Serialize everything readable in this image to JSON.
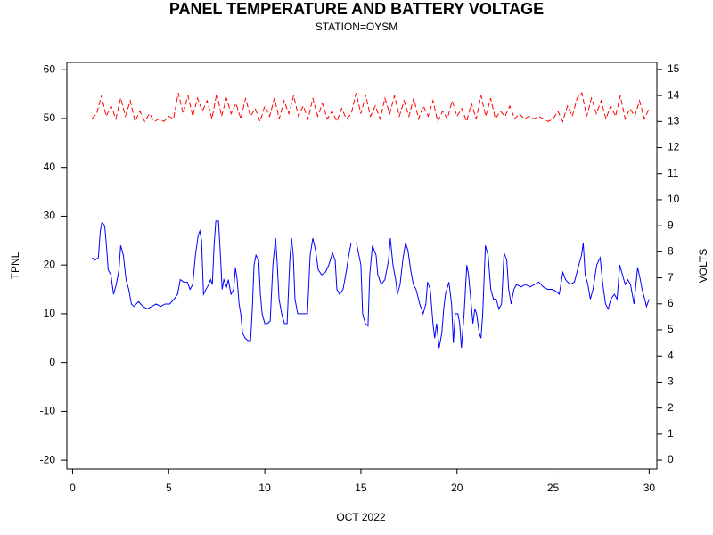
{
  "chart_data": {
    "type": "line",
    "title": "PANEL TEMPERATURE AND BATTERY VOLTAGE",
    "subtitle": "STATION=OYSM",
    "xlabel": "OCT 2022",
    "ylabel": "TPNL",
    "y2label": "VOLTS",
    "xlim": [
      -0.3,
      30.4
    ],
    "xticks": [
      0,
      5,
      10,
      15,
      20,
      25,
      30
    ],
    "ylim": [
      -21.8,
      61.5
    ],
    "yticks": [
      -20,
      -10,
      0,
      10,
      20,
      30,
      40,
      50,
      60
    ],
    "y2lim": [
      -0.34,
      15.27
    ],
    "y2ticks": [
      0,
      1,
      2,
      3,
      4,
      5,
      6,
      7,
      8,
      9,
      10,
      11,
      12,
      13,
      14,
      15
    ],
    "series": [
      {
        "color": "#0000ff",
        "axis": "y",
        "dash": false,
        "x": [
          1.02,
          1.16,
          1.34,
          1.44,
          1.53,
          1.67,
          1.76,
          1.85,
          1.99,
          2.13,
          2.27,
          2.41,
          2.5,
          2.64,
          2.78,
          2.92,
          3.06,
          3.19,
          3.43,
          3.66,
          3.89,
          4.12,
          4.35,
          4.58,
          4.81,
          5.05,
          5.28,
          5.46,
          5.6,
          5.79,
          5.97,
          6.11,
          6.25,
          6.39,
          6.53,
          6.62,
          6.71,
          6.81,
          6.94,
          7.08,
          7.18,
          7.27,
          7.36,
          7.45,
          7.59,
          7.69,
          7.78,
          7.87,
          8.01,
          8.1,
          8.24,
          8.38,
          8.47,
          8.56,
          8.66,
          8.75,
          8.84,
          8.98,
          9.12,
          9.26,
          9.35,
          9.44,
          9.54,
          9.68,
          9.77,
          9.86,
          10.0,
          10.14,
          10.28,
          10.42,
          10.56,
          10.65,
          10.74,
          10.88,
          11.02,
          11.16,
          11.3,
          11.39,
          11.48,
          11.57,
          11.71,
          11.85,
          11.99,
          12.22,
          12.36,
          12.5,
          12.64,
          12.78,
          12.96,
          13.15,
          13.33,
          13.52,
          13.66,
          13.75,
          13.89,
          14.07,
          14.21,
          14.35,
          14.49,
          14.63,
          14.77,
          15.0,
          15.09,
          15.23,
          15.37,
          15.46,
          15.6,
          15.79,
          15.88,
          16.06,
          16.25,
          16.44,
          16.53,
          16.67,
          16.81,
          16.9,
          17.04,
          17.18,
          17.32,
          17.45,
          17.59,
          17.73,
          17.87,
          18.06,
          18.24,
          18.38,
          18.47,
          18.61,
          18.75,
          18.84,
          18.94,
          19.07,
          19.21,
          19.31,
          19.4,
          19.58,
          19.72,
          19.81,
          19.91,
          20.05,
          20.14,
          20.23,
          20.37,
          20.51,
          20.6,
          20.74,
          20.83,
          20.93,
          21.02,
          21.16,
          21.25,
          21.34,
          21.48,
          21.62,
          21.76,
          21.9,
          22.04,
          22.18,
          22.32,
          22.45,
          22.59,
          22.69,
          22.82,
          22.96,
          23.1,
          23.33,
          23.56,
          23.8,
          24.03,
          24.26,
          24.49,
          24.72,
          24.95,
          25.19,
          25.32,
          25.51,
          25.65,
          25.88,
          26.11,
          26.34,
          26.48,
          26.57,
          26.67,
          26.81,
          26.94,
          27.08,
          27.27,
          27.45,
          27.59,
          27.73,
          27.87,
          28.01,
          28.19,
          28.33,
          28.47,
          28.61,
          28.75,
          28.89,
          29.03,
          29.21,
          29.4,
          29.54,
          29.63,
          29.77,
          29.86,
          30.0
        ],
        "values": [
          21.5,
          21,
          21.5,
          27,
          28.8,
          28,
          24,
          19,
          18,
          14,
          16,
          19,
          24,
          22,
          17,
          15,
          12,
          11.5,
          12.5,
          11.5,
          11,
          11.5,
          12,
          11.5,
          12,
          12,
          13,
          14,
          17,
          16.5,
          16.5,
          15,
          16,
          22,
          26,
          27,
          25,
          14,
          15,
          16,
          17,
          16,
          24,
          29,
          29,
          22,
          15,
          17,
          15.5,
          17,
          14,
          15,
          19.5,
          17,
          12,
          10,
          6,
          5,
          4.5,
          4.5,
          11,
          20,
          22,
          21,
          14,
          10,
          8,
          8,
          8.5,
          20,
          25.5,
          20,
          13,
          10,
          8,
          8,
          21,
          25.5,
          22,
          13,
          10,
          10,
          10,
          10,
          22,
          25.5,
          23,
          19,
          18,
          18.5,
          20,
          22.5,
          21,
          15,
          14,
          15,
          18,
          21.5,
          24.5,
          24.5,
          24.5,
          20,
          10,
          8,
          7.5,
          18,
          24,
          22,
          18,
          16,
          17,
          21,
          25.5,
          20,
          17,
          14,
          16,
          21,
          24.5,
          23,
          19,
          16,
          15,
          12,
          10,
          12,
          16.5,
          15,
          8,
          5,
          8,
          3,
          6,
          11,
          14,
          16.5,
          12,
          4,
          10,
          10,
          8,
          3,
          10,
          20,
          18,
          12,
          8,
          11,
          10,
          6,
          5,
          10,
          24,
          22,
          15,
          13,
          13,
          11,
          12,
          22.5,
          21,
          15,
          12,
          15,
          16,
          15.5,
          16,
          15.5,
          16,
          16.5,
          15.5,
          15,
          15,
          14.5,
          14,
          18.5,
          17,
          16,
          16.5,
          20,
          22,
          24.5,
          18,
          16,
          13,
          15,
          20,
          21.5,
          16,
          12,
          11,
          13,
          14,
          13,
          20,
          18,
          16,
          17,
          16,
          12,
          19.5,
          17,
          15,
          13,
          11.5,
          13
        ]
      },
      {
        "color": "#ff0000",
        "axis": "y2",
        "dash": true,
        "x": [
          1,
          1.25,
          1.5,
          1.75,
          2,
          2.25,
          2.5,
          2.75,
          3,
          3.25,
          3.5,
          3.75,
          4,
          4.25,
          4.5,
          4.75,
          5,
          5.25,
          5.5,
          5.75,
          6,
          6.25,
          6.5,
          6.75,
          7,
          7.25,
          7.5,
          7.75,
          8,
          8.25,
          8.5,
          8.75,
          9,
          9.25,
          9.5,
          9.75,
          10,
          10.25,
          10.5,
          10.75,
          11,
          11.25,
          11.5,
          11.75,
          12,
          12.25,
          12.5,
          12.75,
          13,
          13.25,
          13.5,
          13.75,
          14,
          14.25,
          14.5,
          14.75,
          15,
          15.25,
          15.5,
          15.75,
          16,
          16.25,
          16.5,
          16.75,
          17,
          17.25,
          17.5,
          17.75,
          18,
          18.25,
          18.5,
          18.75,
          19,
          19.25,
          19.5,
          19.75,
          20,
          20.25,
          20.5,
          20.75,
          21,
          21.25,
          21.5,
          21.75,
          22,
          22.25,
          22.5,
          22.75,
          23,
          23.25,
          23.5,
          23.75,
          24,
          24.25,
          24.5,
          24.75,
          25,
          25.25,
          25.5,
          25.75,
          26,
          26.25,
          26.5,
          26.75,
          27,
          27.25,
          27.5,
          27.75,
          28,
          28.25,
          28.5,
          28.75,
          29,
          29.25,
          29.5,
          29.75,
          30
        ],
        "values": [
          13.1,
          13.3,
          14.0,
          13.2,
          13.6,
          13.1,
          13.9,
          13.2,
          13.8,
          13.0,
          13.4,
          13.0,
          13.3,
          13.0,
          13.1,
          13.0,
          13.2,
          13.1,
          14.1,
          13.3,
          14.0,
          13.2,
          13.9,
          13.4,
          13.8,
          13.1,
          14.1,
          13.2,
          13.9,
          13.3,
          13.7,
          13.1,
          13.9,
          13.2,
          13.5,
          13.0,
          13.6,
          13.2,
          13.9,
          13.1,
          13.8,
          13.3,
          14.0,
          13.2,
          13.6,
          13.1,
          13.9,
          13.2,
          13.7,
          13.1,
          13.4,
          13.0,
          13.5,
          13.1,
          13.3,
          14.1,
          13.3,
          14.0,
          13.2,
          13.6,
          13.1,
          13.9,
          13.3,
          14.0,
          13.2,
          13.8,
          13.2,
          13.9,
          13.1,
          13.6,
          13.2,
          13.8,
          13.0,
          13.4,
          13.1,
          13.8,
          13.2,
          13.5,
          13.0,
          13.7,
          13.1,
          14.0,
          13.2,
          13.9,
          13.1,
          13.4,
          13.2,
          13.6,
          13.1,
          13.3,
          13.1,
          13.2,
          13.1,
          13.2,
          13.1,
          13.0,
          13.1,
          13.4,
          13.0,
          13.6,
          13.2,
          13.9,
          14.1,
          13.2,
          13.9,
          13.3,
          13.8,
          13.1,
          13.6,
          13.2,
          14.0,
          13.1,
          13.5,
          13.2,
          13.8,
          13.1,
          13.5
        ]
      }
    ]
  }
}
